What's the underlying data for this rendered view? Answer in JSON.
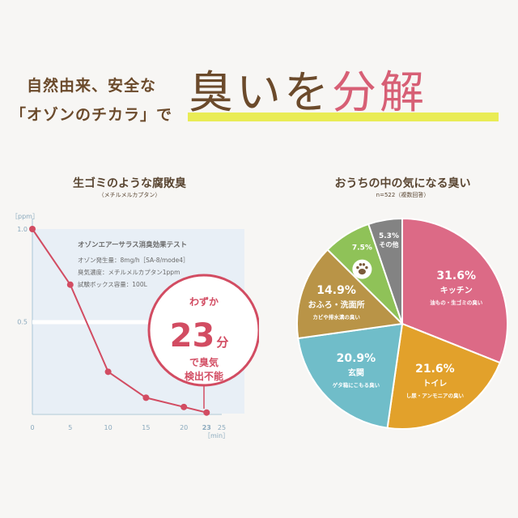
{
  "headline": {
    "line1": "自然由来、安全な",
    "line2": "「オゾンのチカラ」で",
    "main_1": "臭いを",
    "main_2": "分解"
  },
  "left_chart": {
    "title": "生ゴミのような腐敗臭",
    "subtitle": "（メチルメルカプタン）",
    "unit_y": "［ppm］",
    "unit_x": "［min］",
    "info_title": "オゾンエアーサラス消臭効果テスト",
    "info_lines": [
      "オゾン発生量：8mg/h［SA-8/mode4］",
      "臭気濃度：メチルメルカプタン1ppm",
      "試験ボックス容量：100L"
    ],
    "badge_top": "わずか",
    "badge_num": "23",
    "badge_unit": "分",
    "badge_line2": "で臭気",
    "badge_line3": "検出不能",
    "highlight_tick": "23",
    "colors": {
      "line": "#d24c62",
      "axis": "#a9c6d8",
      "area": "#e8eff6"
    }
  },
  "right_chart": {
    "title": "おうちの中の気になる臭い",
    "subtitle": "n=522（複数回答）"
  },
  "chart_data": [
    {
      "type": "line",
      "x": [
        0,
        5,
        10,
        15,
        20,
        23
      ],
      "y": [
        1.0,
        0.7,
        0.23,
        0.09,
        0.04,
        0.01
      ],
      "xlim": [
        0,
        25
      ],
      "ylim": [
        0,
        1.0
      ],
      "x_ticks": [
        "0",
        "5",
        "10",
        "15",
        "20",
        "23",
        "25"
      ],
      "y_ticks": [
        "0.5",
        "1.0"
      ],
      "title": "生ゴミのような腐敗臭",
      "subtitle": "（メチルメルカプタン）",
      "xlabel": "［min］",
      "ylabel": "［ppm］"
    },
    {
      "type": "pie",
      "title": "おうちの中の気になる臭い",
      "subtitle": "n=522（複数回答）",
      "slices": [
        {
          "pct": "31.6%",
          "value": 31.6,
          "name": "キッチン",
          "desc": "油もの・生ゴミの臭い",
          "color": "#dc6a86"
        },
        {
          "pct": "21.6%",
          "value": 21.6,
          "name": "トイレ",
          "desc": "し尿・アンモニアの臭い",
          "color": "#e2a12b"
        },
        {
          "pct": "20.9%",
          "value": 20.9,
          "name": "玄関",
          "desc": "ゲタ箱にこもる臭い",
          "color": "#70bdc9"
        },
        {
          "pct": "14.9%",
          "value": 14.9,
          "name": "おふろ・洗面所",
          "desc": "カビや排水溝の臭い",
          "color": "#b99447"
        },
        {
          "pct": "7.5%",
          "value": 7.5,
          "name": "",
          "desc": "",
          "color": "#8fc258",
          "icon": "paw-icon"
        },
        {
          "pct": "5.3%",
          "value": 5.3,
          "name": "その他",
          "desc": "",
          "color": "#838383"
        }
      ]
    }
  ]
}
